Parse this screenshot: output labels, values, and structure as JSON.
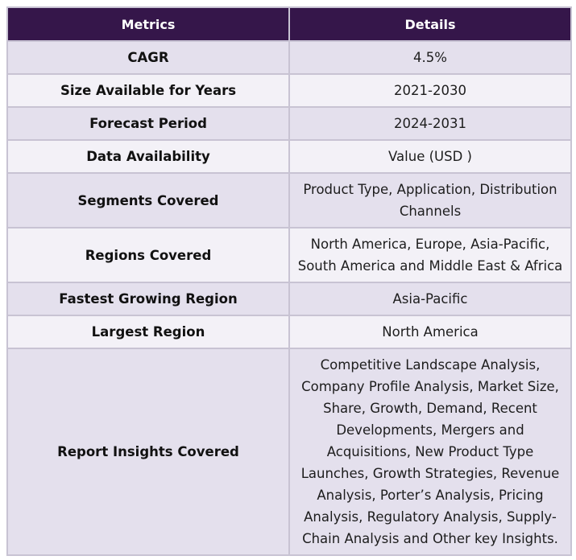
{
  "table": {
    "headers": [
      "Metrics",
      "Details"
    ],
    "rows": [
      {
        "metric": "CAGR",
        "detail": "4.5%"
      },
      {
        "metric": "Size Available for Years",
        "detail": "2021-2030"
      },
      {
        "metric": "Forecast Period",
        "detail": "2024-2031"
      },
      {
        "metric": "Data Availability",
        "detail": "Value (USD )"
      },
      {
        "metric": "Segments Covered",
        "detail": "Product Type, Application, Distribution Channels"
      },
      {
        "metric": "Regions Covered",
        "detail": "North America, Europe, Asia-Pacific, South America and Middle East & Africa"
      },
      {
        "metric": "Fastest Growing Region",
        "detail": "Asia-Pacific"
      },
      {
        "metric": "Largest Region",
        "detail": "North America"
      },
      {
        "metric": "Report Insights Covered",
        "detail": "Competitive Landscape Analysis, Company Profile Analysis, Market Size, Share, Growth, Demand, Recent Developments, Mergers and Acquisitions, New Product Type Launches, Growth Strategies, Revenue Analysis, Porter’s Analysis, Pricing Analysis, Regulatory Analysis, Supply-Chain Analysis and Other key Insights."
      }
    ]
  },
  "colors": {
    "header_bg": "#35164a",
    "header_text": "#ffffff",
    "row_shade": "#e4e0ed",
    "row_plain": "#f3f1f7",
    "border": "#c8c3d3"
  }
}
